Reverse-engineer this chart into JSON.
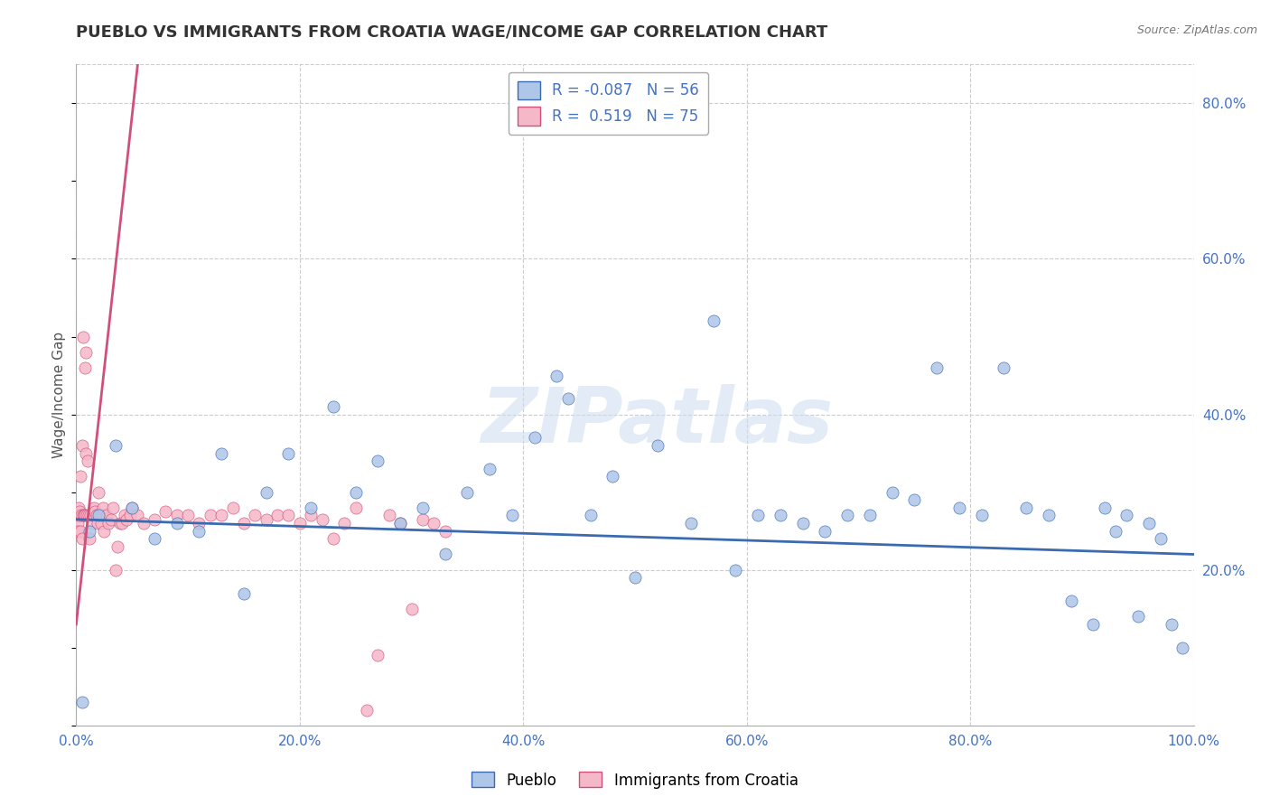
{
  "title": "PUEBLO VS IMMIGRANTS FROM CROATIA WAGE/INCOME GAP CORRELATION CHART",
  "source": "Source: ZipAtlas.com",
  "ylabel": "Wage/Income Gap",
  "blue_label": "Pueblo",
  "pink_label": "Immigrants from Croatia",
  "blue_R": -0.087,
  "blue_N": 56,
  "pink_R": 0.519,
  "pink_N": 75,
  "blue_color": "#aec6e8",
  "pink_color": "#f5b8c8",
  "blue_line_color": "#3a6ab0",
  "pink_line_color": "#d0507a",
  "watermark": "ZIPatlas",
  "blue_scatter_x": [
    0.5,
    1.2,
    2.0,
    3.5,
    5.0,
    7.0,
    9.0,
    11.0,
    13.0,
    15.0,
    17.0,
    19.0,
    21.0,
    23.0,
    25.0,
    27.0,
    29.0,
    31.0,
    33.0,
    35.0,
    37.0,
    39.0,
    41.0,
    43.0,
    44.0,
    46.0,
    48.0,
    50.0,
    52.0,
    55.0,
    57.0,
    59.0,
    61.0,
    63.0,
    65.0,
    67.0,
    69.0,
    71.0,
    73.0,
    75.0,
    77.0,
    79.0,
    81.0,
    83.0,
    85.0,
    87.0,
    89.0,
    91.0,
    92.0,
    93.0,
    94.0,
    95.0,
    96.0,
    97.0,
    98.0,
    99.0
  ],
  "blue_scatter_y": [
    3.0,
    25.0,
    27.0,
    36.0,
    28.0,
    24.0,
    26.0,
    25.0,
    35.0,
    17.0,
    30.0,
    35.0,
    28.0,
    41.0,
    30.0,
    34.0,
    26.0,
    28.0,
    22.0,
    30.0,
    33.0,
    27.0,
    37.0,
    45.0,
    42.0,
    27.0,
    32.0,
    19.0,
    36.0,
    26.0,
    52.0,
    20.0,
    27.0,
    27.0,
    26.0,
    25.0,
    27.0,
    27.0,
    30.0,
    29.0,
    46.0,
    28.0,
    27.0,
    46.0,
    28.0,
    27.0,
    16.0,
    13.0,
    28.0,
    25.0,
    27.0,
    14.0,
    26.0,
    24.0,
    13.0,
    10.0
  ],
  "pink_scatter_x": [
    0.1,
    0.15,
    0.2,
    0.25,
    0.3,
    0.35,
    0.4,
    0.45,
    0.5,
    0.55,
    0.6,
    0.65,
    0.7,
    0.75,
    0.8,
    0.85,
    0.9,
    0.95,
    1.0,
    1.1,
    1.2,
    1.3,
    1.4,
    1.5,
    1.6,
    1.7,
    1.8,
    1.9,
    2.0,
    2.1,
    2.2,
    2.3,
    2.4,
    2.5,
    2.7,
    2.9,
    3.1,
    3.3,
    3.5,
    3.7,
    3.9,
    4.1,
    4.3,
    4.5,
    4.8,
    5.0,
    5.5,
    6.0,
    7.0,
    8.0,
    9.0,
    10.0,
    11.0,
    12.0,
    13.0,
    14.0,
    15.0,
    16.0,
    17.0,
    18.0,
    19.0,
    20.0,
    21.0,
    22.0,
    23.0,
    24.0,
    25.0,
    26.0,
    27.0,
    28.0,
    29.0,
    30.0,
    31.0,
    32.0,
    33.0
  ],
  "pink_scatter_y": [
    26.0,
    25.0,
    28.0,
    27.0,
    27.5,
    32.0,
    25.0,
    27.0,
    24.0,
    36.0,
    50.0,
    27.0,
    27.0,
    46.0,
    27.0,
    48.0,
    35.0,
    27.0,
    34.0,
    27.0,
    24.0,
    27.0,
    26.0,
    27.0,
    28.0,
    27.5,
    27.0,
    26.0,
    30.0,
    27.0,
    26.0,
    27.0,
    28.0,
    25.0,
    27.0,
    26.0,
    26.5,
    28.0,
    20.0,
    23.0,
    26.0,
    26.0,
    27.0,
    26.5,
    27.0,
    28.0,
    27.0,
    26.0,
    26.5,
    27.5,
    27.0,
    27.0,
    26.0,
    27.0,
    27.0,
    28.0,
    26.0,
    27.0,
    26.5,
    27.0,
    27.0,
    26.0,
    27.0,
    26.5,
    24.0,
    26.0,
    28.0,
    2.0,
    9.0,
    27.0,
    26.0,
    15.0,
    26.5,
    26.0,
    25.0
  ],
  "xlim": [
    0,
    100
  ],
  "ylim": [
    0,
    85
  ],
  "xticks": [
    0,
    20,
    40,
    60,
    80,
    100
  ],
  "xticklabels": [
    "0.0%",
    "20.0%",
    "40.0%",
    "60.0%",
    "80.0%",
    "100.0%"
  ],
  "yticks_right": [
    20,
    40,
    60,
    80
  ],
  "yticklabels_right": [
    "20.0%",
    "40.0%",
    "60.0%",
    "80.0%"
  ],
  "background_color": "#ffffff",
  "grid_color": "#cccccc",
  "pink_line_x_start": 0.0,
  "pink_line_x_end": 5.5,
  "pink_line_y_start": 13.0,
  "pink_line_y_end": 85.0,
  "blue_line_x_start": 0.0,
  "blue_line_x_end": 100.0,
  "blue_line_y_start": 26.5,
  "blue_line_y_end": 22.0
}
